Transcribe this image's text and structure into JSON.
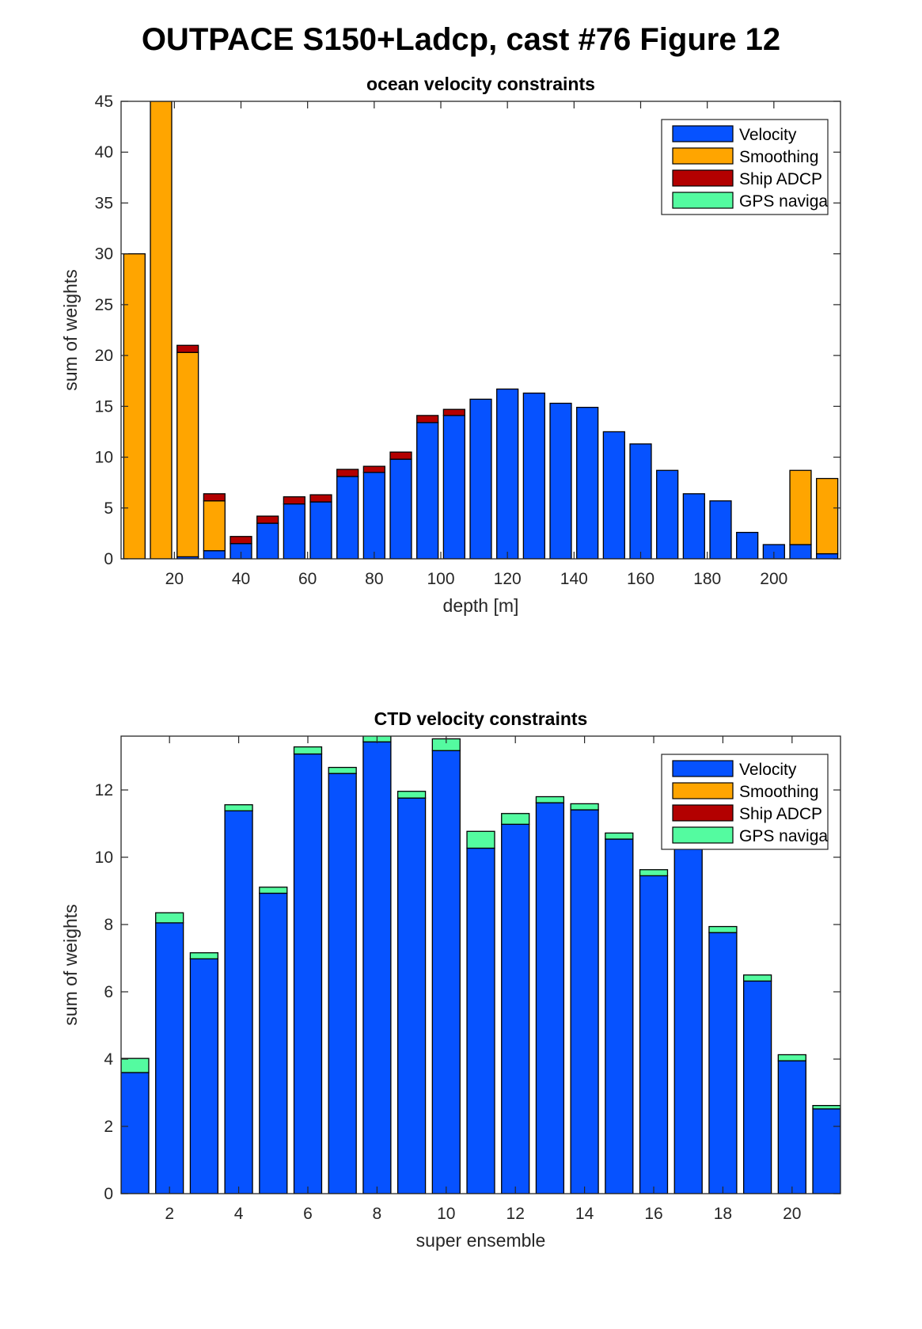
{
  "figure_title": "OUTPACE S150+Ladcp, cast #76  Figure 12",
  "chart_data": [
    {
      "type": "bar",
      "stacked": true,
      "title": "ocean velocity constraints",
      "xlabel": "depth [m]",
      "ylabel": "sum of weights",
      "x": [
        8,
        16,
        24,
        32,
        40,
        48,
        56,
        64,
        72,
        80,
        88,
        96,
        104,
        112,
        120,
        128,
        136,
        144,
        152,
        160,
        168,
        176,
        184,
        192,
        200,
        208,
        216
      ],
      "xlim": [
        4,
        220
      ],
      "ylim": [
        0,
        45
      ],
      "xticks": [
        20,
        40,
        60,
        80,
        100,
        120,
        140,
        160,
        180,
        200
      ],
      "yticks": [
        0,
        5,
        10,
        15,
        20,
        25,
        30,
        35,
        40,
        45
      ],
      "legend_position": "top-right",
      "series": [
        {
          "name": "Velocity",
          "color": "#0652ff",
          "values": [
            0,
            0,
            0.2,
            0.8,
            1.5,
            3.5,
            5.4,
            5.6,
            8.1,
            8.5,
            9.8,
            13.4,
            14.1,
            15.7,
            16.7,
            16.3,
            15.3,
            14.9,
            12.5,
            11.3,
            8.7,
            6.4,
            5.7,
            2.6,
            1.4,
            1.4,
            0.5
          ]
        },
        {
          "name": "Smoothing",
          "color": "#ffa500",
          "values": [
            30.0,
            45.0,
            20.1,
            4.9,
            0,
            0,
            0,
            0,
            0,
            0,
            0,
            0,
            0,
            0,
            0,
            0,
            0,
            0,
            0,
            0,
            0,
            0,
            0,
            0,
            0,
            7.3,
            7.4
          ]
        },
        {
          "name": "Ship ADCP",
          "color": "#b30000",
          "values": [
            0,
            0,
            0.7,
            0.7,
            0.7,
            0.7,
            0.7,
            0.7,
            0.7,
            0.6,
            0.7,
            0.7,
            0.6,
            0,
            0,
            0,
            0,
            0,
            0,
            0,
            0,
            0,
            0,
            0,
            0,
            0,
            0
          ]
        },
        {
          "name": "GPS naviga",
          "color": "#54fba0",
          "values": [
            0,
            0,
            0,
            0,
            0,
            0,
            0,
            0,
            0,
            0,
            0,
            0,
            0,
            0,
            0,
            0,
            0,
            0,
            0,
            0,
            0,
            0,
            0,
            0,
            0,
            0,
            0
          ]
        }
      ]
    },
    {
      "type": "bar",
      "stacked": true,
      "title": "CTD velocity constraints",
      "xlabel": "super ensemble",
      "ylabel": "sum of weights",
      "x": [
        1,
        2,
        3,
        4,
        5,
        6,
        7,
        8,
        9,
        10,
        11,
        12,
        13,
        14,
        15,
        16,
        17,
        18,
        19,
        20,
        21
      ],
      "xlim": [
        0.6,
        21.4
      ],
      "ylim": [
        0,
        13.6
      ],
      "xticks": [
        2,
        4,
        6,
        8,
        10,
        12,
        14,
        16,
        18,
        20
      ],
      "yticks": [
        0,
        2,
        4,
        6,
        8,
        10,
        12
      ],
      "legend_position": "top-right",
      "series": [
        {
          "name": "Velocity",
          "color": "#0652ff",
          "values": [
            3.6,
            8.05,
            6.98,
            11.38,
            8.93,
            13.07,
            12.49,
            13.43,
            11.76,
            13.17,
            10.27,
            10.98,
            11.62,
            11.41,
            10.54,
            9.45,
            10.94,
            7.76,
            6.32,
            3.95,
            2.52
          ]
        },
        {
          "name": "Smoothing",
          "color": "#ffa500",
          "values": [
            0,
            0,
            0,
            0,
            0,
            0,
            0,
            0,
            0,
            0,
            0,
            0,
            0,
            0,
            0,
            0,
            0,
            0,
            0,
            0,
            0
          ]
        },
        {
          "name": "Ship ADCP",
          "color": "#b30000",
          "values": [
            0,
            0,
            0,
            0,
            0,
            0,
            0,
            0,
            0,
            0,
            0,
            0,
            0,
            0,
            0,
            0,
            0,
            0,
            0,
            0,
            0
          ]
        },
        {
          "name": "GPS naviga",
          "color": "#54fba0",
          "values": [
            0.42,
            0.3,
            0.18,
            0.18,
            0.18,
            0.21,
            0.18,
            0.21,
            0.2,
            0.35,
            0.5,
            0.32,
            0.18,
            0.18,
            0.18,
            0.18,
            0.16,
            0.18,
            0.18,
            0.18,
            0.1
          ]
        }
      ]
    }
  ]
}
